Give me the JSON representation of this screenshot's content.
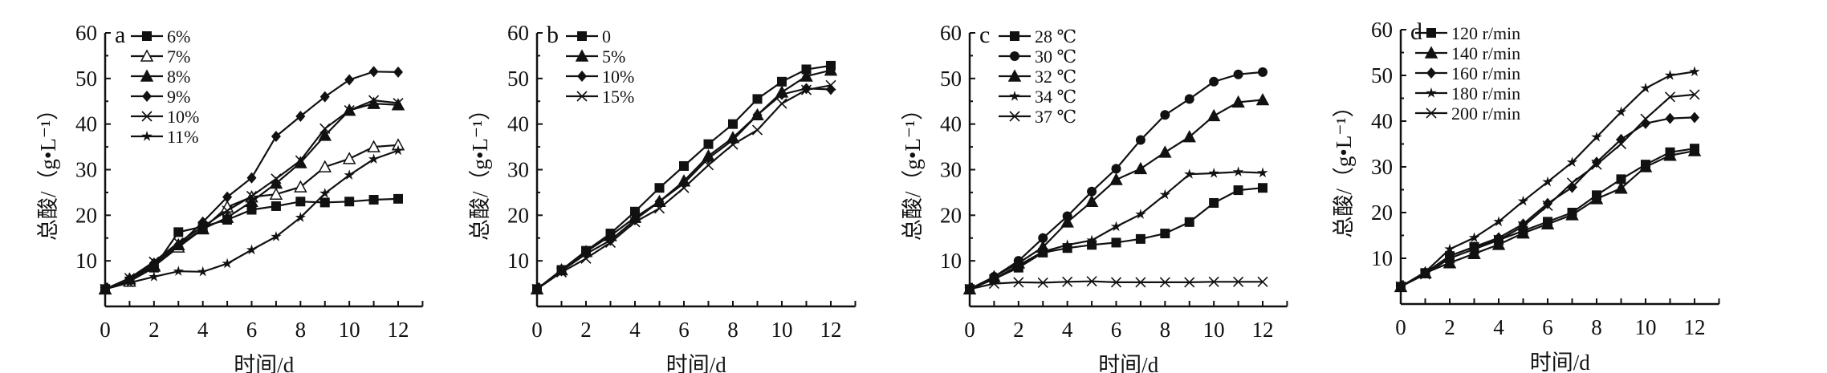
{
  "colors": {
    "line": "#111111",
    "background": "#ffffff"
  },
  "chart_data": [
    {
      "type": "line",
      "panel_letter": "a",
      "xlabel": "时间/d",
      "ylabel": "总酸/（g•L⁻¹）",
      "xlim": [
        0,
        13
      ],
      "ylim": [
        0,
        60
      ],
      "xticks": [
        "0",
        "2",
        "4",
        "6",
        "8",
        "10",
        "12"
      ],
      "yticks": [
        "10",
        "20",
        "30",
        "40",
        "50",
        "60"
      ],
      "legend_position": "top-left",
      "x": [
        0,
        1,
        2,
        3,
        4,
        5,
        6,
        7,
        8,
        9,
        10,
        11,
        12
      ],
      "series": [
        {
          "name": "6%",
          "marker": "square",
          "values": [
            3.8,
            5.5,
            8.5,
            16.3,
            17.5,
            19,
            21.2,
            22,
            23,
            22.8,
            23,
            23.4,
            23.6
          ]
        },
        {
          "name": "7%",
          "marker": "open-triangle",
          "values": [
            3.8,
            5.5,
            8.8,
            13,
            17,
            21.8,
            24,
            24.6,
            26.2,
            30.6,
            32.4,
            35,
            35.4
          ]
        },
        {
          "name": "8%",
          "marker": "triangle",
          "values": [
            3.8,
            6,
            9,
            13.5,
            17,
            19.5,
            23,
            27,
            31.5,
            37.5,
            43,
            44.5,
            44.2
          ]
        },
        {
          "name": "9%",
          "marker": "diamond",
          "values": [
            3.8,
            6,
            9.5,
            13.5,
            18.5,
            24,
            28.2,
            37.3,
            41.7,
            46,
            49.7,
            51.5,
            51.4
          ]
        },
        {
          "name": "10%",
          "marker": "x",
          "values": [
            3.8,
            6.2,
            9.8,
            14,
            17.5,
            21,
            24.2,
            28,
            32,
            39,
            43,
            45.2,
            44.6
          ]
        },
        {
          "name": "11%",
          "marker": "star",
          "values": [
            3.8,
            5.2,
            6.5,
            7.7,
            7.6,
            9.4,
            12.4,
            15.3,
            19.5,
            24.8,
            28.8,
            32.3,
            34.2
          ]
        }
      ]
    },
    {
      "type": "line",
      "panel_letter": "b",
      "xlabel": "时间/d",
      "ylabel": "总酸/（g•L⁻¹）",
      "xlim": [
        0,
        13
      ],
      "ylim": [
        0,
        60
      ],
      "xticks": [
        "0",
        "2",
        "4",
        "6",
        "8",
        "10",
        "12"
      ],
      "yticks": [
        "10",
        "20",
        "30",
        "40",
        "50",
        "60"
      ],
      "legend_position": "top-left",
      "x": [
        0,
        1,
        2,
        3,
        4,
        5,
        6,
        7,
        8,
        9,
        10,
        11,
        12
      ],
      "series": [
        {
          "name": "0",
          "marker": "square",
          "values": [
            3.8,
            8,
            12.2,
            16,
            20.8,
            26,
            30.8,
            35.6,
            40,
            45.5,
            49.3,
            52,
            52.8
          ]
        },
        {
          "name": "5%",
          "marker": "triangle",
          "values": [
            3.8,
            8,
            12,
            15.5,
            19.5,
            23,
            27.5,
            33,
            37,
            42,
            47,
            50.5,
            51.8
          ]
        },
        {
          "name": "10%",
          "marker": "diamond",
          "values": [
            3.8,
            7.8,
            11.5,
            14.5,
            19,
            23,
            27,
            32.5,
            36.5,
            42,
            46.5,
            47.8,
            47.6
          ]
        },
        {
          "name": "15%",
          "marker": "x",
          "values": [
            3.8,
            7.5,
            10.5,
            14,
            18.5,
            21.5,
            26,
            31,
            35.5,
            38.7,
            44.5,
            47.5,
            48.5
          ]
        }
      ]
    },
    {
      "type": "line",
      "panel_letter": "c",
      "xlabel": "时间/d",
      "ylabel": "总酸/（g•L⁻¹）",
      "xlim": [
        0,
        13
      ],
      "ylim": [
        0,
        60
      ],
      "xticks": [
        "0",
        "2",
        "4",
        "6",
        "8",
        "10",
        "12"
      ],
      "yticks": [
        "10",
        "20",
        "30",
        "40",
        "50",
        "60"
      ],
      "legend_position": "top-left",
      "x": [
        0,
        1,
        2,
        3,
        4,
        5,
        6,
        7,
        8,
        9,
        10,
        11,
        12
      ],
      "series": [
        {
          "name": "28 ℃",
          "marker": "square",
          "values": [
            3.8,
            6,
            8.5,
            11.8,
            12.8,
            13.5,
            14,
            14.8,
            16,
            18.5,
            22.7,
            25.5,
            26
          ]
        },
        {
          "name": "30 ℃",
          "marker": "circle",
          "values": [
            3.8,
            6.5,
            10,
            15,
            19.8,
            25.2,
            30.2,
            36.5,
            42,
            45.5,
            49.3,
            50.9,
            51.4
          ]
        },
        {
          "name": "32 ℃",
          "marker": "triangle",
          "values": [
            3.8,
            6.5,
            9.5,
            13,
            18.5,
            23,
            27.8,
            30.2,
            33.8,
            37.2,
            41.8,
            44.8,
            45.3
          ]
        },
        {
          "name": "34 ℃",
          "marker": "star",
          "values": [
            3.8,
            6,
            9,
            12,
            13.5,
            14.5,
            17.5,
            20.2,
            24.5,
            29,
            29.2,
            29.5,
            29.3
          ]
        },
        {
          "name": "37 ℃",
          "marker": "x",
          "values": [
            3.8,
            5,
            5.3,
            5.2,
            5.4,
            5.5,
            5.3,
            5.3,
            5.3,
            5.3,
            5.4,
            5.4,
            5.4
          ]
        }
      ]
    },
    {
      "type": "line",
      "panel_letter": "d",
      "xlabel": "时间/d",
      "ylabel": "总酸/（g•L⁻¹）",
      "xlim": [
        0,
        13
      ],
      "ylim": [
        0,
        60
      ],
      "xticks": [
        "0",
        "2",
        "4",
        "6",
        "8",
        "10",
        "12"
      ],
      "yticks": [
        "10",
        "20",
        "30",
        "40",
        "50",
        "60"
      ],
      "legend_position": "top-left",
      "x": [
        0,
        1,
        2,
        3,
        4,
        5,
        6,
        7,
        8,
        9,
        10,
        11,
        12
      ],
      "series": [
        {
          "name": "120 r/min",
          "marker": "square",
          "values": [
            3.8,
            6.8,
            10.5,
            12.5,
            14,
            16,
            18,
            20,
            23.8,
            27.3,
            30.5,
            33.2,
            34
          ]
        },
        {
          "name": "140 r/min",
          "marker": "triangle",
          "values": [
            3.8,
            6.8,
            9,
            11,
            13,
            15.5,
            17.5,
            19.5,
            23,
            25.3,
            30,
            32.5,
            33.5
          ]
        },
        {
          "name": "160 r/min",
          "marker": "diamond",
          "values": [
            3.8,
            6.8,
            10.5,
            12.5,
            14.5,
            17.5,
            22,
            25.5,
            31,
            36,
            39.5,
            40.6,
            40.8
          ]
        },
        {
          "name": "180 r/min",
          "marker": "star",
          "values": [
            3.8,
            7,
            12,
            14.5,
            18,
            22.5,
            26.7,
            31,
            36.5,
            42,
            47.2,
            50,
            50.8
          ]
        },
        {
          "name": "200 r/min",
          "marker": "x",
          "values": [
            3.8,
            6.5,
            10,
            12,
            14,
            17,
            21.5,
            26.5,
            30.5,
            35,
            40.5,
            45.3,
            45.8
          ]
        }
      ]
    }
  ]
}
